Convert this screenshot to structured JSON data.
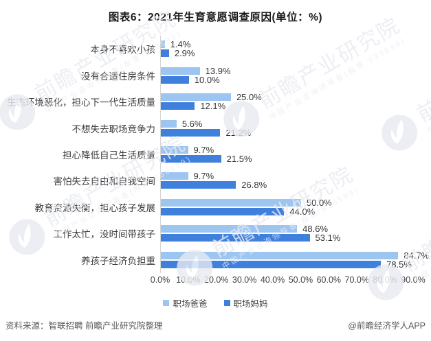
{
  "title": "图表6：2021年生育意愿调查原因(单位：%)",
  "chart_data": {
    "type": "bar",
    "orientation": "horizontal",
    "title": "图表6：2021年生育意愿调查原因(单位：%)",
    "categories": [
      "本身不喜欢小孩",
      "没有合适住房条件",
      "生态环境恶化，担心下一代生活质量",
      "不想失去职场竞争力",
      "担心降低自己生活质量",
      "害怕失去自由和自我空间",
      "教育资源失衡，担心孩子发展",
      "工作太忙，没时间带孩子",
      "养孩子经济负担重"
    ],
    "series": [
      {
        "name": "职场爸爸",
        "color": "#9cc5f2",
        "values": [
          1.4,
          13.9,
          25.0,
          5.6,
          9.7,
          9.7,
          50.0,
          48.6,
          84.7
        ]
      },
      {
        "name": "职场妈妈",
        "color": "#4080dd",
        "values": [
          2.9,
          10.0,
          12.1,
          21.2,
          21.5,
          26.8,
          44.0,
          53.1,
          78.5
        ]
      }
    ],
    "xlim": [
      0,
      90
    ],
    "x_ticks": [
      "0.0%",
      "10.0%",
      "20.0%",
      "30.0%",
      "40.0%",
      "50.0%",
      "60.0%",
      "70.0%",
      "80.0%",
      "90.0%"
    ],
    "value_suffix": "%",
    "legend_position": "bottom",
    "grid": false,
    "axis_color": "#d6d6d6"
  },
  "footer": {
    "source": "资料来源：智联招聘 前瞻产业研究院整理",
    "credit": "@前瞻经济学人APP"
  },
  "watermark": {
    "text": "前瞻产业研究院",
    "subtext": "中国产业咨询领导者(股票:839599)"
  }
}
